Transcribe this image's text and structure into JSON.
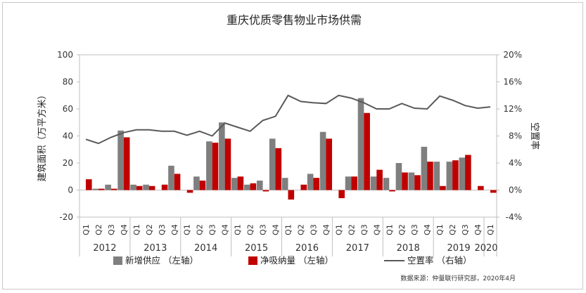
{
  "chart_data": {
    "type": "bar+line",
    "title": "重庆优质零售物业市场供需",
    "ylabel_left": "建筑面积（万平方米）",
    "ylabel_right": "空置率",
    "ylim_left": [
      -20,
      100
    ],
    "ylim_right": [
      -4,
      20
    ],
    "yticks_left": [
      "-20",
      "0",
      "20",
      "40",
      "60",
      "80",
      "100"
    ],
    "yticks_right": [
      "-4%",
      "0%",
      "4%",
      "8%",
      "12%",
      "16%",
      "20%"
    ],
    "categories": [
      "Q1",
      "Q2",
      "Q3",
      "Q4",
      "Q1",
      "Q2",
      "Q3",
      "Q4",
      "Q1",
      "Q2",
      "Q3",
      "Q4",
      "Q1",
      "Q2",
      "Q3",
      "Q4",
      "Q1",
      "Q2",
      "Q3",
      "Q4",
      "Q1",
      "Q2",
      "Q3",
      "Q4",
      "Q1",
      "Q2",
      "Q3",
      "Q4",
      "Q1",
      "Q2",
      "Q3",
      "Q4",
      "Q1"
    ],
    "years": [
      "2012",
      "2013",
      "2014",
      "2015",
      "2016",
      "2017",
      "2018",
      "2019",
      "2020"
    ],
    "series": [
      {
        "name": "新增供应 （左轴）",
        "type": "bar",
        "color": "#7f7f7f",
        "values": [
          0,
          1,
          4,
          44,
          4,
          4,
          0,
          18,
          0,
          10,
          36,
          50,
          9,
          4,
          7,
          38,
          9,
          0,
          12,
          43,
          0,
          10,
          68,
          10,
          9,
          20,
          13,
          32,
          21,
          21,
          24,
          0,
          0
        ]
      },
      {
        "name": "净吸纳量 （左轴）",
        "type": "bar",
        "color": "#c00000",
        "values": [
          8,
          1,
          1,
          39,
          3,
          3,
          4,
          12,
          -2,
          7,
          35,
          38,
          10,
          5,
          -1,
          31,
          -7,
          4,
          9,
          38,
          -6,
          10,
          57,
          15,
          -1,
          13,
          11,
          21,
          3,
          22,
          26,
          3,
          -2
        ]
      },
      {
        "name": "空置率 （右轴）",
        "type": "line",
        "color": "#595959",
        "values": [
          7.5,
          6.9,
          7.8,
          8.5,
          8.9,
          8.9,
          8.7,
          8.7,
          8.1,
          8.7,
          8.0,
          9.9,
          9.3,
          8.7,
          10.3,
          10.9,
          14.0,
          13.1,
          12.9,
          12.8,
          14.0,
          13.6,
          12.9,
          12.0,
          12.0,
          12.8,
          12.1,
          12.0,
          13.9,
          13.3,
          12.5,
          12.1,
          12.3
        ]
      }
    ],
    "source": "数据来源：仲量联行研究部，2020年4月"
  }
}
